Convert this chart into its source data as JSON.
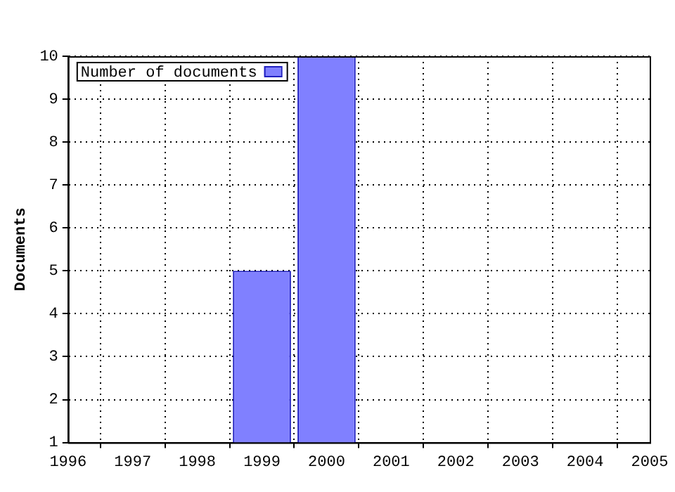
{
  "chart_data": {
    "type": "bar",
    "x": [
      1999,
      2000
    ],
    "series": [
      {
        "name": "Number of documents",
        "color": "#8080ff",
        "values": [
          5,
          10
        ]
      }
    ],
    "ylabel": "Documents",
    "xlim": [
      1996,
      2005
    ],
    "xticks": [
      1996,
      1997,
      1998,
      1999,
      2000,
      2001,
      2002,
      2003,
      2004,
      2005
    ],
    "ylim": [
      1,
      10
    ],
    "yticks": [
      1,
      2,
      3,
      4,
      5,
      6,
      7,
      8,
      9,
      10
    ],
    "grid": true,
    "legend": "top left"
  }
}
